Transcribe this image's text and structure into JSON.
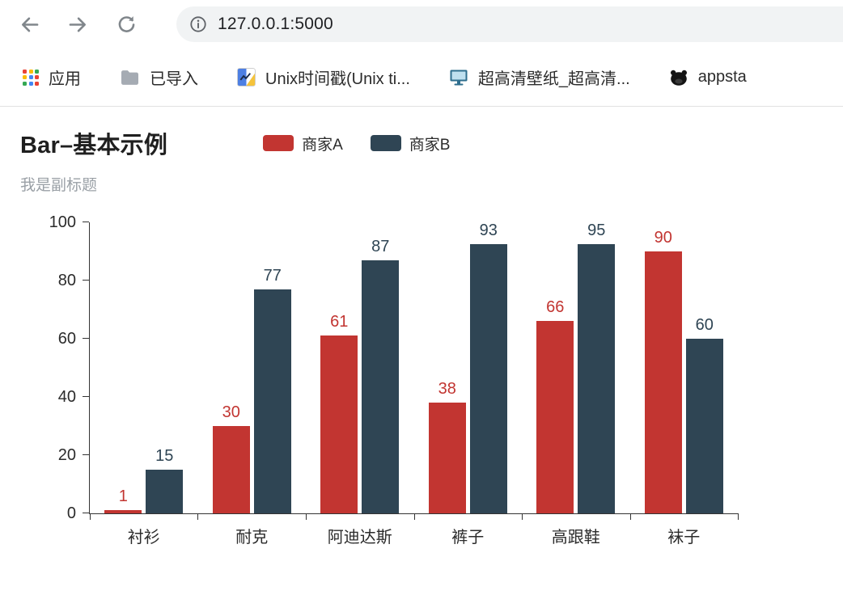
{
  "browser": {
    "url": "127.0.0.1:5000",
    "bookmarks": [
      {
        "label": "应用",
        "icon": "apps-grid-icon"
      },
      {
        "label": "已导入",
        "icon": "folder-icon"
      },
      {
        "label": "Unix时间戳(Unix ti...",
        "icon": "unix-timestamp-favicon"
      },
      {
        "label": "超高清壁纸_超高清...",
        "icon": "wallpaper-favicon"
      },
      {
        "label": "appsta",
        "icon": "appstore-favicon"
      }
    ]
  },
  "chart_data": {
    "type": "bar",
    "title": "Bar–基本示例",
    "subtitle": "我是副标题",
    "categories": [
      "衬衫",
      "耐克",
      "阿迪达斯",
      "裤子",
      "高跟鞋",
      "袜子"
    ],
    "series": [
      {
        "name": "商家A",
        "color": "#c23531",
        "values": [
          1,
          30,
          61,
          38,
          66,
          90
        ]
      },
      {
        "name": "商家B",
        "color": "#2f4554",
        "values": [
          15,
          77,
          87,
          93,
          95,
          60
        ]
      }
    ],
    "ylim": [
      0,
      100
    ],
    "yticks": [
      0,
      20,
      40,
      60,
      80,
      100
    ],
    "xlabel": "",
    "ylabel": "",
    "grid": false,
    "legend_position": "top",
    "value_labels": true
  }
}
